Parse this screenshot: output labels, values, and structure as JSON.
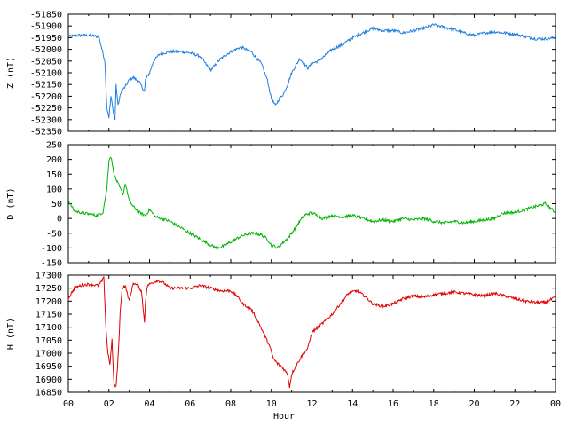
{
  "chart_data": {
    "type": "line",
    "xlabel": "Hour",
    "x_ticks": [
      "00",
      "02",
      "04",
      "06",
      "08",
      "10",
      "12",
      "14",
      "16",
      "18",
      "20",
      "22",
      "00"
    ],
    "xlim": [
      0,
      24
    ],
    "panels": [
      {
        "ylabel": "Z (nT)",
        "color": "#1f7fe0",
        "ylim": [
          -52350,
          -51850
        ],
        "y_ticks": [
          -51850,
          -51900,
          -51950,
          -52000,
          -52050,
          -52100,
          -52150,
          -52200,
          -52250,
          -52300,
          -52350
        ],
        "series": [
          {
            "x": [
              0,
              0.5,
              1,
              1.5,
              1.8,
              1.9,
              2.0,
              2.1,
              2.2,
              2.3,
              2.35,
              2.45,
              2.6,
              2.8,
              3.0,
              3.2,
              3.5,
              3.75,
              3.8,
              4.0,
              4.2,
              4.5,
              5.0,
              5.5,
              6.0,
              6.5,
              7.0,
              7.2,
              7.5,
              8.0,
              8.5,
              9.0,
              9.5,
              9.8,
              10.0,
              10.2,
              10.4,
              10.6,
              10.8,
              11.0,
              11.2,
              11.4,
              11.6,
              11.8,
              12.0,
              12.3,
              12.6,
              13.0,
              13.5,
              14.0,
              14.5,
              15.0,
              15.5,
              16.0,
              16.5,
              17.0,
              17.5,
              18.0,
              18.5,
              19.0,
              19.5,
              20.0,
              20.5,
              21.0,
              21.5,
              22.0,
              22.5,
              23.0,
              23.5,
              24.0
            ],
            "y": [
              -51945,
              -51940,
              -51940,
              -51945,
              -52050,
              -52250,
              -52290,
              -52200,
              -52260,
              -52300,
              -52150,
              -52240,
              -52180,
              -52160,
              -52130,
              -52120,
              -52140,
              -52180,
              -52130,
              -52100,
              -52050,
              -52020,
              -52010,
              -52010,
              -52015,
              -52030,
              -52090,
              -52070,
              -52040,
              -52010,
              -51990,
              -52010,
              -52060,
              -52130,
              -52210,
              -52240,
              -52210,
              -52190,
              -52150,
              -52100,
              -52070,
              -52040,
              -52060,
              -52080,
              -52060,
              -52050,
              -52030,
              -52000,
              -51980,
              -51950,
              -51930,
              -51910,
              -51920,
              -51920,
              -51930,
              -51920,
              -51910,
              -51895,
              -51905,
              -51915,
              -51930,
              -51940,
              -51930,
              -51925,
              -51930,
              -51935,
              -51945,
              -51955,
              -51955,
              -51950
            ]
          }
        ]
      },
      {
        "ylabel": "D (nT)",
        "color": "#00b400",
        "ylim": [
          -150,
          250
        ],
        "y_ticks": [
          250,
          200,
          150,
          100,
          50,
          0,
          -50,
          -100,
          -150
        ],
        "series": [
          {
            "x": [
              0,
              0.3,
              0.6,
              1.0,
              1.4,
              1.7,
              1.9,
              2.0,
              2.1,
              2.2,
              2.3,
              2.5,
              2.7,
              2.8,
              3.0,
              3.2,
              3.5,
              3.8,
              4.0,
              4.3,
              4.6,
              5.0,
              5.5,
              6.0,
              6.5,
              7.0,
              7.3,
              7.6,
              8.0,
              8.5,
              9.0,
              9.5,
              9.8,
              10.0,
              10.3,
              10.6,
              10.9,
              11.1,
              11.3,
              11.6,
              12.0,
              12.5,
              13.0,
              13.5,
              14.0,
              14.5,
              15.0,
              15.5,
              16.0,
              16.5,
              17.0,
              17.5,
              18.0,
              18.5,
              19.0,
              19.5,
              20.0,
              20.5,
              21.0,
              21.3,
              21.6,
              22.0,
              22.5,
              23.0,
              23.5,
              24.0
            ],
            "y": [
              60,
              25,
              20,
              15,
              10,
              20,
              100,
              200,
              210,
              170,
              140,
              110,
              80,
              120,
              60,
              40,
              20,
              10,
              30,
              5,
              0,
              -10,
              -30,
              -50,
              -70,
              -90,
              -100,
              -95,
              -80,
              -60,
              -50,
              -55,
              -70,
              -90,
              -100,
              -80,
              -60,
              -40,
              -20,
              10,
              20,
              0,
              10,
              5,
              10,
              0,
              -10,
              -5,
              -10,
              0,
              -5,
              0,
              -10,
              -15,
              -10,
              -15,
              -10,
              -5,
              0,
              15,
              20,
              20,
              30,
              40,
              50,
              20
            ]
          }
        ]
      },
      {
        "ylabel": "H (nT)",
        "color": "#e00000",
        "ylim": [
          16850,
          17300
        ],
        "y_ticks": [
          17300,
          17250,
          17200,
          17150,
          17100,
          17050,
          17000,
          16950,
          16900,
          16850
        ],
        "series": [
          {
            "x": [
              0,
              0.3,
              0.6,
              1.0,
              1.5,
              1.75,
              1.85,
              1.95,
              2.05,
              2.15,
              2.25,
              2.35,
              2.45,
              2.55,
              2.65,
              2.8,
              3.0,
              3.2,
              3.4,
              3.6,
              3.75,
              3.8,
              3.9,
              4.1,
              4.4,
              4.7,
              5.0,
              5.5,
              6.0,
              6.5,
              7.0,
              7.5,
              8.0,
              8.3,
              8.6,
              9.0,
              9.3,
              9.6,
              9.9,
              10.1,
              10.3,
              10.5,
              10.8,
              10.9,
              11.0,
              11.2,
              11.5,
              11.8,
              12.0,
              12.3,
              12.6,
              13.0,
              13.4,
              13.8,
              14.2,
              14.6,
              15.0,
              15.5,
              16.0,
              16.5,
              17.0,
              17.5,
              18.0,
              18.5,
              19.0,
              19.5,
              20.0,
              20.5,
              21.0,
              21.5,
              22.0,
              22.5,
              23.0,
              23.5,
              24.0
            ],
            "y": [
              17210,
              17250,
              17260,
              17265,
              17260,
              17290,
              17100,
              17000,
              16960,
              17050,
              16880,
              16870,
              16980,
              17150,
              17250,
              17260,
              17200,
              17270,
              17260,
              17240,
              17120,
              17200,
              17260,
              17270,
              17280,
              17270,
              17250,
              17250,
              17250,
              17260,
              17250,
              17240,
              17240,
              17220,
              17190,
              17170,
              17130,
              17080,
              17030,
              16980,
              16960,
              16950,
              16920,
              16870,
              16920,
              16950,
              16990,
              17020,
              17080,
              17100,
              17120,
              17150,
              17190,
              17230,
              17240,
              17220,
              17190,
              17180,
              17190,
              17210,
              17220,
              17215,
              17225,
              17230,
              17235,
              17230,
              17225,
              17220,
              17230,
              17220,
              17210,
              17200,
              17195,
              17195,
              17215
            ]
          }
        ]
      }
    ]
  }
}
